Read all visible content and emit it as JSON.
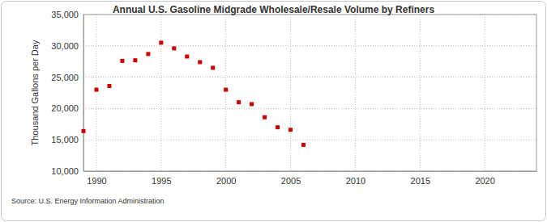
{
  "chart_data": {
    "type": "scatter",
    "title": "Annual U.S. Gasoline Midgrade Wholesale/Resale Volume by Refiners",
    "y_label": "Thousand Gallons per Day",
    "source": "Source: U.S. Energy Information Administration",
    "x": [
      1989,
      1990,
      1991,
      1992,
      1993,
      1994,
      1995,
      1996,
      1997,
      1998,
      1999,
      2000,
      2001,
      2002,
      2003,
      2004,
      2005,
      2006
    ],
    "series": [
      {
        "name": "Midgrade Wholesale/Resale Volume",
        "color": "#cc0000",
        "marker": "square",
        "values": [
          16400,
          23000,
          23600,
          27600,
          27700,
          28700,
          30500,
          29600,
          28300,
          27400,
          26500,
          23000,
          21000,
          20700,
          18600,
          17000,
          16600,
          14200
        ]
      }
    ],
    "xlim": [
      1989,
      2024
    ],
    "xticks": [
      1990,
      1995,
      2000,
      2005,
      2010,
      2015,
      2020
    ],
    "ylim": [
      10000,
      35000
    ],
    "yticks": [
      {
        "value": 10000,
        "label": "10,000"
      },
      {
        "value": 15000,
        "label": "15,000"
      },
      {
        "value": 20000,
        "label": "20,000"
      },
      {
        "value": 25000,
        "label": "25,000"
      },
      {
        "value": 30000,
        "label": "30,000"
      },
      {
        "value": 35000,
        "label": "35,000"
      }
    ],
    "grid": true
  }
}
